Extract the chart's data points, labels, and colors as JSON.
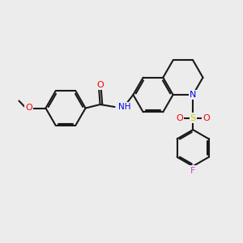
{
  "bg_color": "#ececec",
  "bond_color": "#1a1a1a",
  "bond_width": 1.5,
  "atom_colors": {
    "O": "#ff0000",
    "N": "#0000ff",
    "S": "#cccc00",
    "F": "#cc44cc",
    "H": "#4488aa",
    "C": "#1a1a1a"
  }
}
